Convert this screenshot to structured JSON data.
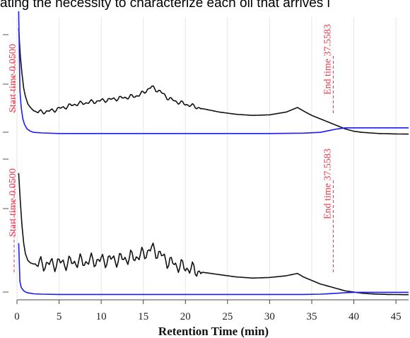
{
  "caption": "ating the necessity to characterize each oil that arrives i",
  "colors": {
    "black_trace": "#111111",
    "blue_trace": "#1a1aff",
    "marker": "#e8364a",
    "grid": "#e6e6e6"
  },
  "chart_data": {
    "type": "line",
    "xlabel": "Retention Time (min)",
    "xlim": [
      0,
      46.5
    ],
    "xticks": [
      "0",
      "5",
      "10",
      "15",
      "20",
      "25",
      "30",
      "35",
      "40",
      "45"
    ],
    "grid": "vertical",
    "panels": [
      {
        "id": "top",
        "markers": [
          {
            "label": "Start time 0.0500",
            "x": 0.05
          },
          {
            "label": "End time 37.5583",
            "x": 37.5583
          }
        ],
        "series": [
          {
            "color": "black",
            "x": [
              0.2,
              0.4,
              0.6,
              0.8,
              1.0,
              1.3,
              1.6,
              2.0,
              2.5,
              3,
              4,
              5,
              6,
              7,
              8,
              9,
              10,
              11,
              12,
              13,
              14,
              14.5,
              15,
              15.5,
              16,
              16.5,
              17,
              17.5,
              18,
              19,
              20,
              21,
              22,
              24,
              26,
              28,
              30,
              32,
              33.3,
              34,
              35,
              36,
              37,
              38,
              39,
              40,
              41,
              42,
              43,
              44,
              45,
              46,
              46.5
            ],
            "y": [
              95,
              70,
              55,
              42,
              35,
              28,
              25,
              22,
              21,
              21,
              22,
              24,
              26,
              28,
              29,
              30,
              31,
              32,
              33,
              34,
              35,
              36,
              38,
              41,
              43,
              41,
              39,
              36,
              33,
              30,
              28,
              26,
              24,
              21,
              19,
              18,
              18.5,
              21,
              25,
              22,
              18,
              15,
              12,
              9,
              6,
              4,
              3,
              2.5,
              2,
              1.8,
              1.6,
              1.5,
              1.5
            ]
          },
          {
            "color": "blue",
            "x": [
              0.2,
              0.35,
              0.5,
              0.7,
              0.9,
              1.2,
              1.6,
              2.0,
              3,
              5,
              10,
              20,
              30,
              34,
              36,
              37,
              38,
              39,
              40,
              45,
              46.5
            ],
            "y": [
              110,
              40,
              25,
              15,
              10,
              6,
              4,
              3,
              2.5,
              2,
              2,
              2,
              2,
              2.3,
              3,
              4.5,
              6,
              7,
              7,
              7,
              7
            ]
          }
        ]
      },
      {
        "id": "bottom",
        "markers": [
          {
            "label": "Start time 0.0500",
            "x": 0.05
          },
          {
            "label": "End time 37.5583",
            "x": 37.5583
          }
        ],
        "series": [
          {
            "color": "black",
            "x": [
              0.2,
              0.4,
              0.6,
              0.8,
              1.0,
              1.3,
              1.6,
              2.0,
              2.5,
              3,
              4,
              5,
              6,
              7,
              8,
              9,
              10,
              11,
              12,
              13,
              14,
              15,
              15.5,
              16,
              16.5,
              17,
              17.5,
              18,
              19,
              20,
              21,
              22,
              24,
              26,
              28,
              30,
              32,
              33.3,
              34,
              35,
              36,
              37,
              38,
              39,
              40,
              41,
              42,
              43,
              44,
              45,
              46,
              46.5
            ],
            "y": [
              105,
              80,
              60,
              45,
              36,
              30,
              28,
              27,
              27,
              27,
              27,
              28,
              28,
              29,
              29,
              30,
              30,
              31,
              31,
              32,
              33,
              35,
              38,
              40,
              38,
              35,
              32,
              29,
              26,
              24,
              22,
              20,
              18,
              16,
              15,
              15.5,
              17,
              19,
              16,
              13,
              10,
              8,
              6,
              4,
              3,
              2,
              1.5,
              1.2,
              1,
              0.9,
              0.8,
              0.8
            ]
          },
          {
            "color": "blue",
            "x": [
              0.2,
              0.35,
              0.5,
              0.7,
              0.9,
              1.2,
              1.6,
              2.0,
              3,
              5,
              10,
              20,
              30,
              34,
              36,
              37,
              38,
              39,
              40,
              45,
              46.5
            ],
            "y": [
              45,
              12,
              7,
              5,
              3.5,
              2.5,
              2,
              1.5,
              1.2,
              1,
              1,
              1,
              1,
              1,
              1.2,
              1.6,
              2,
              2.5,
              2.8,
              2.8,
              2.8
            ]
          }
        ]
      }
    ]
  }
}
